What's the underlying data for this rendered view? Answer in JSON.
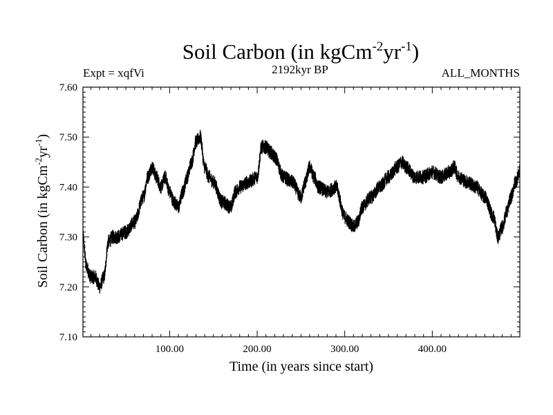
{
  "chart_data": {
    "type": "line",
    "title": "Soil Carbon (in kgCm",
    "title_units": {
      "exp1": "-2",
      "mid": "yr",
      "exp2": "-1",
      "close": ")"
    },
    "expt_label": "Expt = xqfVi",
    "period_label": "2192kyr BP",
    "months_label": "ALL_MONTHS",
    "xlabel": "Time (in years since start)",
    "ylabel": "Soil Carbon (in kgCm",
    "ylabel_units": {
      "exp1": "-2",
      "mid": "yr",
      "exp2": "-1",
      "close": ")"
    },
    "xlim": [
      1,
      500
    ],
    "ylim": [
      7.1,
      7.6
    ],
    "x_ticks": [
      {
        "value": 100,
        "label": "100.00"
      },
      {
        "value": 200,
        "label": "200.00"
      },
      {
        "value": 300,
        "label": "300.00"
      },
      {
        "value": 400,
        "label": "400.00"
      }
    ],
    "y_ticks": [
      {
        "value": 7.1,
        "label": "7.10"
      },
      {
        "value": 7.2,
        "label": "7.20"
      },
      {
        "value": 7.3,
        "label": "7.30"
      },
      {
        "value": 7.4,
        "label": "7.40"
      },
      {
        "value": 7.5,
        "label": "7.50"
      },
      {
        "value": 7.6,
        "label": "7.60"
      }
    ],
    "line_color": "#000000",
    "series": [
      {
        "name": "Soil Carbon",
        "x": [
          1,
          5,
          10,
          15,
          20,
          25,
          30,
          35,
          40,
          50,
          60,
          70,
          75,
          80,
          85,
          90,
          95,
          100,
          105,
          110,
          115,
          120,
          125,
          130,
          135,
          140,
          145,
          150,
          160,
          170,
          175,
          180,
          190,
          200,
          205,
          210,
          215,
          220,
          230,
          240,
          250,
          255,
          260,
          265,
          270,
          280,
          290,
          300,
          305,
          310,
          315,
          320,
          330,
          340,
          350,
          360,
          365,
          370,
          380,
          390,
          400,
          410,
          420,
          425,
          430,
          440,
          450,
          460,
          470,
          475,
          480,
          485,
          490,
          495,
          500
        ],
        "y": [
          7.3,
          7.24,
          7.22,
          7.22,
          7.2,
          7.22,
          7.29,
          7.3,
          7.3,
          7.31,
          7.33,
          7.38,
          7.42,
          7.44,
          7.42,
          7.4,
          7.42,
          7.39,
          7.37,
          7.36,
          7.39,
          7.42,
          7.45,
          7.49,
          7.5,
          7.44,
          7.42,
          7.41,
          7.37,
          7.36,
          7.39,
          7.4,
          7.41,
          7.42,
          7.48,
          7.48,
          7.47,
          7.46,
          7.42,
          7.41,
          7.38,
          7.41,
          7.44,
          7.42,
          7.4,
          7.39,
          7.4,
          7.34,
          7.33,
          7.32,
          7.33,
          7.36,
          7.38,
          7.4,
          7.42,
          7.44,
          7.45,
          7.44,
          7.42,
          7.42,
          7.43,
          7.42,
          7.43,
          7.44,
          7.42,
          7.41,
          7.4,
          7.38,
          7.34,
          7.3,
          7.32,
          7.35,
          7.38,
          7.41,
          7.43
        ]
      }
    ]
  }
}
